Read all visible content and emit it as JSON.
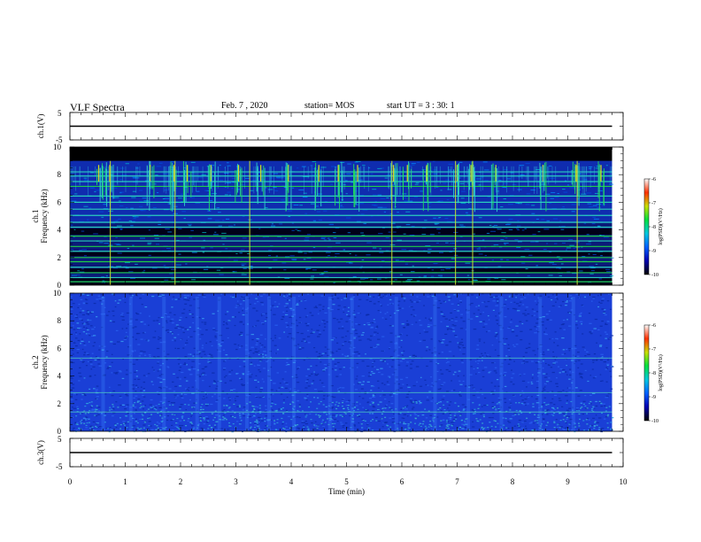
{
  "header": {
    "title": "VLF Spectra",
    "date": "Feb. 7 , 2020",
    "station": "station= MOS",
    "start": "start UT = 3 : 30: 1"
  },
  "colors": {
    "spectrum_background": "#000000",
    "ch2_background": "#1a3fd6",
    "line_green": "#22e040",
    "line_cyan": "#2ee0c0",
    "colorscale": [
      "#000000",
      "#0000c8",
      "#0070ff",
      "#00d0d0",
      "#00e040",
      "#ffff00",
      "#ff2000",
      "#ffffff"
    ]
  },
  "chart_data": [
    {
      "type": "line",
      "name": "ch1-waveform",
      "ylabel": "ch.1(V)",
      "ylim": [
        -5,
        5
      ],
      "yticks": [
        "5",
        "-5"
      ],
      "xlim": [
        0,
        10
      ],
      "x": [
        0,
        9.8
      ],
      "y": [
        0,
        0
      ]
    },
    {
      "type": "heatmap",
      "name": "ch1-spectrogram",
      "ylabel": "ch.1 Frequency (kHz)",
      "ylim": [
        0,
        10
      ],
      "yticks": [
        "0",
        "2",
        "4",
        "6",
        "8",
        "10"
      ],
      "xlim": [
        0,
        10
      ],
      "data_xmax": 9.8,
      "colorbar": {
        "label": "log(PSD)(V²/Hz)",
        "range": [
          -10,
          -6
        ],
        "ticks": [
          "-6",
          "-7",
          "-8",
          "-9",
          "-10"
        ]
      },
      "black_band_khz": [
        9.0,
        10.0
      ],
      "horizontal_lines_khz": [
        {
          "f": 0.25,
          "color": "#22e040"
        },
        {
          "f": 0.55,
          "color": "#2ee0c0"
        },
        {
          "f": 0.9,
          "color": "#22e040"
        },
        {
          "f": 1.3,
          "color": "#2ee0c0"
        },
        {
          "f": 1.7,
          "color": "#22e040"
        },
        {
          "f": 2.0,
          "color": "#22e040"
        },
        {
          "f": 2.45,
          "color": "#2ee0c0"
        },
        {
          "f": 2.8,
          "color": "#22e040"
        },
        {
          "f": 3.2,
          "color": "#2ee0c0"
        },
        {
          "f": 3.55,
          "color": "#22e040"
        },
        {
          "f": 4.2,
          "color": "#2ee0c0"
        },
        {
          "f": 4.55,
          "color": "#2ee0c0"
        },
        {
          "f": 5.05,
          "color": "#2ee0c0"
        },
        {
          "f": 5.5,
          "color": "#2ee0c0"
        },
        {
          "f": 6.0,
          "color": "#2ee0c0"
        },
        {
          "f": 6.45,
          "color": "#2ee0c0"
        },
        {
          "f": 7.15,
          "color": "#22e040"
        },
        {
          "f": 7.5,
          "color": "#2ee0c0"
        },
        {
          "f": 7.9,
          "color": "#2ee0c0"
        },
        {
          "f": 8.2,
          "color": "#2ee0c0"
        }
      ],
      "sferic_times_min": [
        0.52,
        0.72,
        1.45,
        1.88,
        2.12,
        2.55,
        3.05,
        3.45,
        3.95,
        4.5,
        4.85,
        5.2,
        5.85,
        6.1,
        6.45,
        7.0,
        7.25,
        7.7,
        8.55,
        9.15,
        9.6
      ],
      "strong_sferic_times_min": [
        0.73,
        1.9,
        3.25,
        5.82,
        6.97,
        7.28,
        9.17
      ]
    },
    {
      "type": "heatmap",
      "name": "ch2-spectrogram",
      "ylabel": "ch.2 Frequency (kHz)",
      "ylim": [
        0,
        10
      ],
      "yticks": [
        "0",
        "2",
        "4",
        "6",
        "8",
        "10"
      ],
      "xlim": [
        0,
        10
      ],
      "data_xmax": 9.8,
      "colorbar": {
        "label": "log(PSD)(V²/Hz)",
        "range": [
          -10,
          -6
        ],
        "ticks": [
          "-6",
          "-7",
          "-8",
          "-9",
          "-10"
        ]
      },
      "horizontal_lines_khz": [
        1.4,
        2.8,
        5.3
      ],
      "vertical_streak_times_min": [
        0.6,
        1.1,
        1.7,
        2.3,
        2.7,
        3.2,
        3.6,
        4.05,
        4.7,
        5.1,
        5.9,
        6.6,
        7.2,
        7.8,
        8.5,
        9.1
      ]
    },
    {
      "type": "line",
      "name": "ch3-waveform",
      "ylabel": "ch.3(V)",
      "ylim": [
        -5,
        5
      ],
      "yticks": [
        "5",
        "-5"
      ],
      "xlim": [
        0,
        10
      ],
      "x": [
        0,
        9.8
      ],
      "y": [
        0,
        0
      ]
    }
  ],
  "xaxis": {
    "label": "Time (min)",
    "ticks": [
      "0",
      "1",
      "2",
      "3",
      "4",
      "5",
      "6",
      "7",
      "8",
      "9",
      "10"
    ]
  }
}
